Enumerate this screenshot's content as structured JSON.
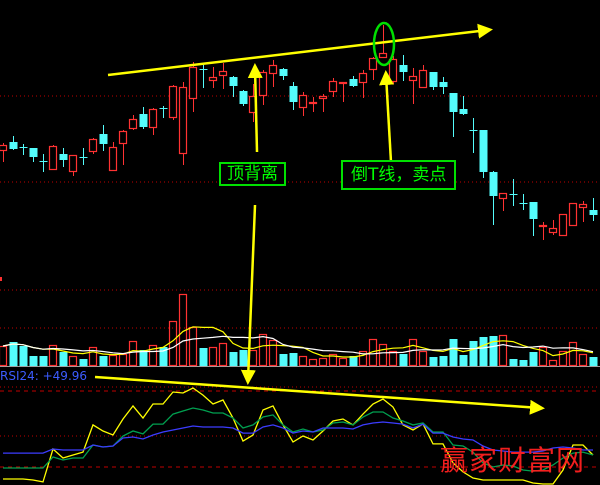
{
  "annotations": {
    "top_divergence": "顶背离",
    "sell_point": "倒T线，卖点"
  },
  "rsi_label": "RSI24: +49.96",
  "watermark": "赢家财富网",
  "colors": {
    "up": "#ff3232",
    "down": "#54fcfc",
    "trend": "#ffff00",
    "label": "#00ff00",
    "rsi_fast": "#ffff00",
    "rsi_mid": "#00a050",
    "rsi_slow": "#3c3cff",
    "vol_ma5": "#ffff00",
    "vol_ma10": "#ffffff",
    "grid": "#c00000"
  },
  "chart_data": [
    {
      "type": "candlestick",
      "title": "",
      "grid": true,
      "ohlc": [
        [
          150,
          157,
          138,
          155
        ],
        [
          158,
          164,
          150,
          151
        ],
        [
          153,
          156,
          145,
          152
        ],
        [
          152,
          152,
          138,
          143
        ],
        [
          139,
          146,
          128,
          138
        ],
        [
          131,
          155,
          131,
          154
        ],
        [
          146,
          152,
          133,
          140
        ],
        [
          129,
          145,
          124,
          145
        ],
        [
          143,
          152,
          135,
          142
        ],
        [
          149,
          162,
          146,
          161
        ],
        [
          166,
          175,
          149,
          156
        ],
        [
          130,
          158,
          130,
          153
        ],
        [
          157,
          170,
          135,
          169
        ],
        [
          172,
          185,
          170,
          181
        ],
        [
          186,
          193,
          171,
          173
        ],
        [
          173,
          192,
          165,
          191
        ],
        [
          192,
          194,
          182,
          191
        ],
        [
          183,
          215,
          180,
          214
        ],
        [
          147,
          218,
          135,
          213
        ],
        [
          202,
          238,
          188,
          233
        ],
        [
          231,
          235,
          212,
          230
        ],
        [
          220,
          233,
          212,
          223
        ],
        [
          225,
          237,
          211,
          229
        ],
        [
          223,
          224,
          203,
          214
        ],
        [
          209,
          210,
          194,
          196
        ],
        [
          188,
          216,
          178,
          204
        ],
        [
          205,
          230,
          195,
          228
        ],
        [
          227,
          240,
          213,
          235
        ],
        [
          231,
          232,
          220,
          224
        ],
        [
          214,
          218,
          190,
          198
        ],
        [
          193,
          208,
          184,
          205
        ],
        [
          197,
          203,
          188,
          198
        ],
        [
          202,
          206,
          188,
          204
        ],
        [
          209,
          222,
          203,
          219
        ],
        [
          217,
          218,
          198,
          218
        ],
        [
          221,
          224,
          213,
          214
        ],
        [
          218,
          230,
          202,
          227
        ],
        [
          231,
          243,
          220,
          242
        ],
        [
          243,
          275,
          242,
          247
        ],
        [
          219,
          244,
          216,
          241
        ],
        [
          235,
          245,
          219,
          228
        ],
        [
          220,
          232,
          196,
          224
        ],
        [
          213,
          235,
          213,
          230
        ],
        [
          228,
          228,
          210,
          213
        ],
        [
          218,
          223,
          206,
          213
        ],
        [
          207,
          207,
          163,
          188
        ],
        [
          191,
          204,
          185,
          186
        ],
        [
          170,
          182,
          147,
          169
        ],
        [
          170,
          170,
          122,
          128
        ],
        [
          128,
          129,
          75,
          104
        ],
        [
          102,
          107,
          89,
          107
        ],
        [
          106,
          121,
          94,
          105
        ],
        [
          97,
          106,
          90,
          96
        ],
        [
          98,
          98,
          64,
          81
        ],
        [
          74,
          78,
          60,
          75
        ],
        [
          68,
          80,
          65,
          72
        ],
        [
          65,
          86,
          65,
          86
        ],
        [
          75,
          97,
          75,
          97
        ],
        [
          93,
          99,
          78,
          96
        ],
        [
          90,
          102,
          79,
          85
        ]
      ]
    },
    {
      "type": "bar",
      "title": "",
      "volume": [
        20,
        24,
        20,
        10,
        10,
        21,
        14,
        10,
        7,
        19,
        10,
        11,
        12,
        25,
        16,
        21,
        19,
        45,
        72,
        39,
        18,
        19,
        23,
        14,
        16,
        16,
        32,
        26,
        12,
        13,
        10,
        7,
        8,
        12,
        8,
        10,
        15,
        27,
        22,
        15,
        12,
        27,
        15,
        9,
        10,
        27,
        11,
        25,
        29,
        30,
        31,
        7,
        6,
        14,
        19,
        6,
        15,
        24,
        12,
        9
      ],
      "ma_periods": [
        5,
        10
      ]
    },
    {
      "type": "line",
      "title": "",
      "ylim": [
        0,
        100
      ],
      "series": [
        {
          "values": [
            10.5,
            10.5,
            10.5,
            9.7,
            8.2,
            34.2,
            27.1,
            29.5,
            31.8,
            53.2,
            48.4,
            45.3,
            57.9,
            68.2,
            58.7,
            69.7,
            69.7,
            79.2,
            78.4,
            82.4,
            76.8,
            69.7,
            72.9,
            58.7,
            40.5,
            45.3,
            65.0,
            68.2,
            53.2,
            39.7,
            44.5,
            41.3,
            48.4,
            56.3,
            57.9,
            53.2,
            61.8,
            69.7,
            73.7,
            67.4,
            53.2,
            49.2,
            54.0,
            38.2,
            38.2,
            23.2,
            16.1,
            11.3,
            9.7,
            9.7,
            9.7,
            9.7,
            9.7,
            7.4,
            6.6,
            6.6,
            17.6,
            37.4,
            37.4,
            29.5
          ]
        },
        {
          "values": [
            19.2,
            19.2,
            19.2,
            19.2,
            19.2,
            27.9,
            25.5,
            27.1,
            27.1,
            37.4,
            35.8,
            36.6,
            44.5,
            48.4,
            46.1,
            53.9,
            53.9,
            61.8,
            64.2,
            66.6,
            65.0,
            62.6,
            62.6,
            58.7,
            50.8,
            53.2,
            59.5,
            61.1,
            53.2,
            47.6,
            50.0,
            47.6,
            49.2,
            54.7,
            55.5,
            53.2,
            59.5,
            63.4,
            63.4,
            58.7,
            56.3,
            53.2,
            54.7,
            47.6,
            47.6,
            37.4,
            36.6,
            31.8,
            23.2,
            20.0,
            21.6,
            20.8,
            17.6,
            16.8,
            17.6,
            21.6,
            27.1,
            31.0,
            31.8,
            29.5
          ]
        },
        {
          "name": "RSI24",
          "values": [
            31.0,
            31.0,
            31.0,
            31.0,
            31.0,
            34.2,
            33.4,
            33.4,
            33.4,
            37.4,
            35.8,
            36.6,
            42.9,
            43.7,
            42.1,
            45.3,
            47.6,
            49.2,
            50.8,
            52.4,
            51.6,
            51.6,
            51.6,
            50.8,
            46.8,
            46.8,
            51.6,
            53.2,
            50.8,
            46.8,
            48.4,
            47.6,
            50.8,
            50.8,
            50.8,
            50.0,
            53.2,
            54.7,
            55.5,
            54.7,
            53.9,
            50.8,
            53.9,
            46.8,
            46.8,
            43.7,
            42.1,
            41.3,
            36.6,
            33.4,
            32.6,
            31.8,
            31.8,
            31.8,
            32.6,
            35.0,
            35.8,
            35.0,
            33.4,
            33.4
          ]
        }
      ]
    }
  ]
}
